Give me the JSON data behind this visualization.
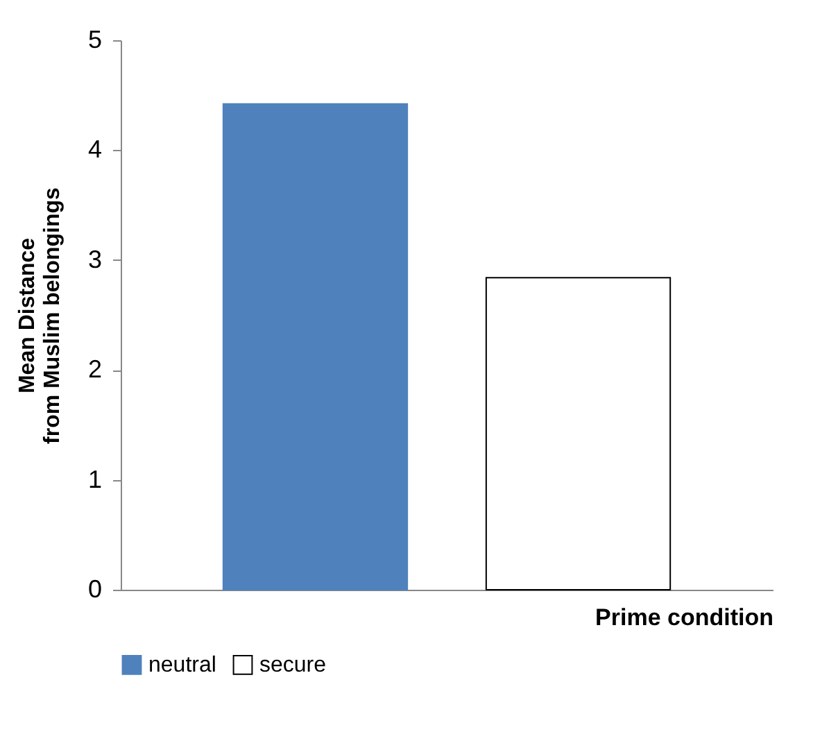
{
  "chart_data": {
    "type": "bar",
    "xlabel": "Prime condition",
    "ylabel": "Mean Distance\nfrom Muslim belongings",
    "categories": [
      null
    ],
    "series": [
      {
        "name": "neutral",
        "color": "#4f81bd",
        "values": [
          4.42
        ]
      },
      {
        "name": "secure",
        "color": "#ffffff",
        "values": [
          2.84
        ]
      }
    ],
    "ylim": [
      0,
      5
    ],
    "yticks": [
      0,
      1,
      2,
      3,
      4,
      5
    ],
    "grid": false,
    "legend": "bottom"
  }
}
